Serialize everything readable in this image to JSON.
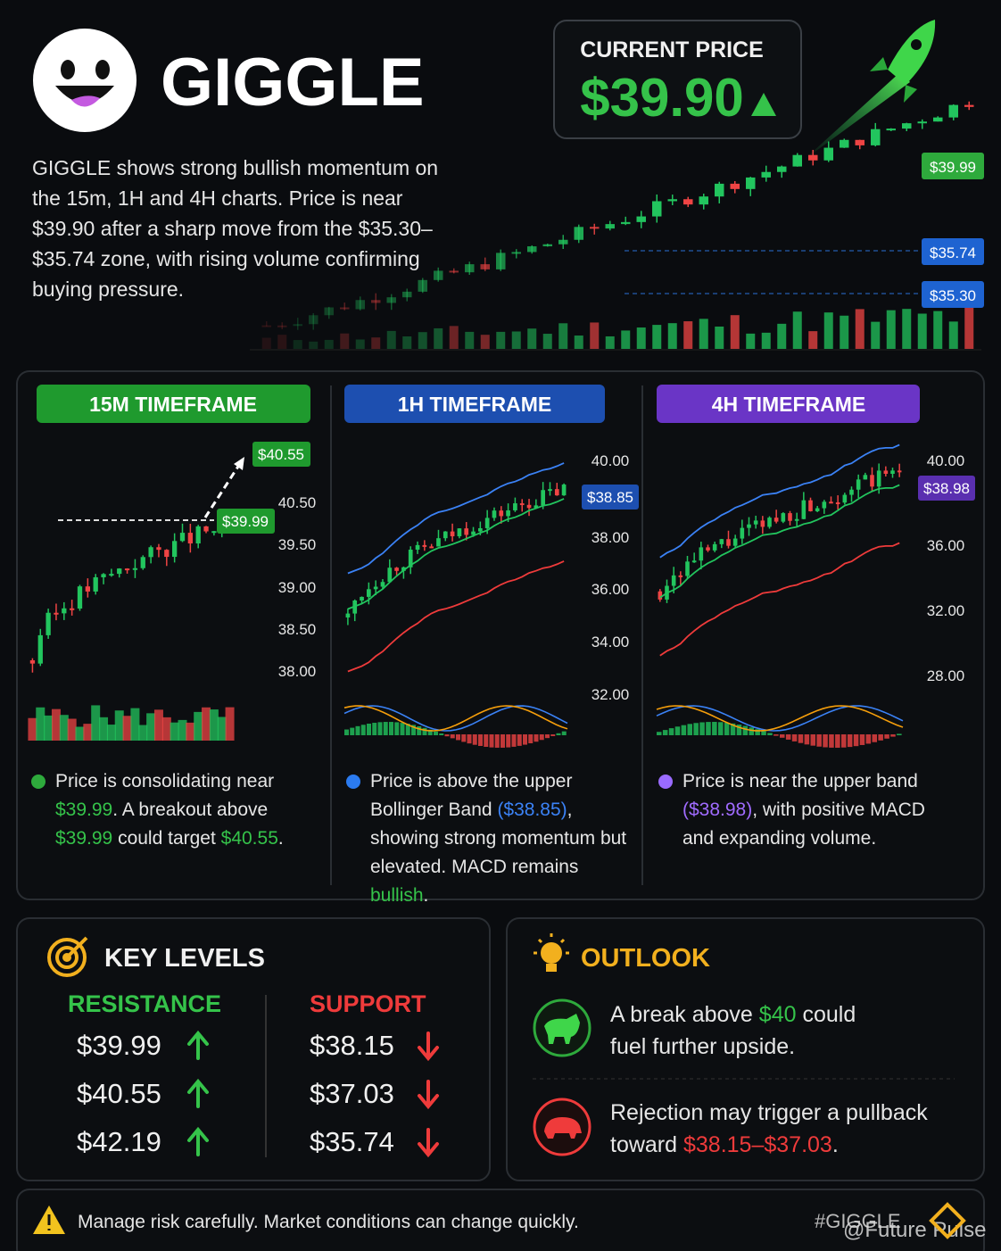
{
  "header": {
    "title": "GIGGLE",
    "description": "GIGGLE shows strong bullish momentum on the 15m, 1H and 4H charts. Price is near $39.90 after a sharp move from the $35.30–$35.74 zone, with rising volume confirming buying pressure."
  },
  "price": {
    "label": "CURRENT PRICE",
    "value": "$39.90"
  },
  "hero": {
    "tags": [
      "$39.99",
      "$35.74",
      "$35.30"
    ]
  },
  "panels": [
    {
      "title": "15M TIMEFRAME",
      "ticks": [
        "40.50",
        "39.50",
        "39.00",
        "38.50",
        "38.00"
      ],
      "tags": [
        "$40.55",
        "$39.99"
      ],
      "note": [
        "Price is consolidating near ",
        "$39.99",
        ". A breakout above ",
        "$39.99",
        " could target ",
        "$40.55",
        "."
      ]
    },
    {
      "title": "1H TIMEFRAME",
      "ticks": [
        "40.00",
        "38.00",
        "36.00",
        "34.00",
        "32.00"
      ],
      "tags": [
        "$38.85"
      ],
      "note": [
        "Price is above the upper Bollinger Band ",
        "($38.85)",
        ", showing strong momentum but elevated. MACD remains ",
        "bullish",
        "."
      ]
    },
    {
      "title": "4H TIMEFRAME",
      "ticks": [
        "40.00",
        "36.00",
        "32.00",
        "28.00"
      ],
      "tags": [
        "$38.98"
      ],
      "note": [
        "Price is near the upper band ",
        "($38.98)",
        ", with positive MACD and expanding volume."
      ]
    }
  ],
  "key_levels": {
    "title": "KEY LEVELS",
    "resistance": {
      "label": "RESISTANCE",
      "levels": [
        "$39.99",
        "$40.55",
        "$42.19"
      ]
    },
    "support": {
      "label": "SUPPORT",
      "levels": [
        "$38.15",
        "$37.03",
        "$35.74"
      ]
    }
  },
  "outlook": {
    "title": "OUTLOOK",
    "items": [
      [
        "A break above ",
        "$40",
        " could fuel further upside."
      ],
      [
        "Rejection may trigger a pullback toward ",
        "$38.15–$37.03",
        "."
      ]
    ]
  },
  "footer": {
    "warning": "Manage risk carefully. Market conditions can change quickly.",
    "hashtag": "#GIGGLE",
    "watermark": "@Future Pulse"
  }
}
